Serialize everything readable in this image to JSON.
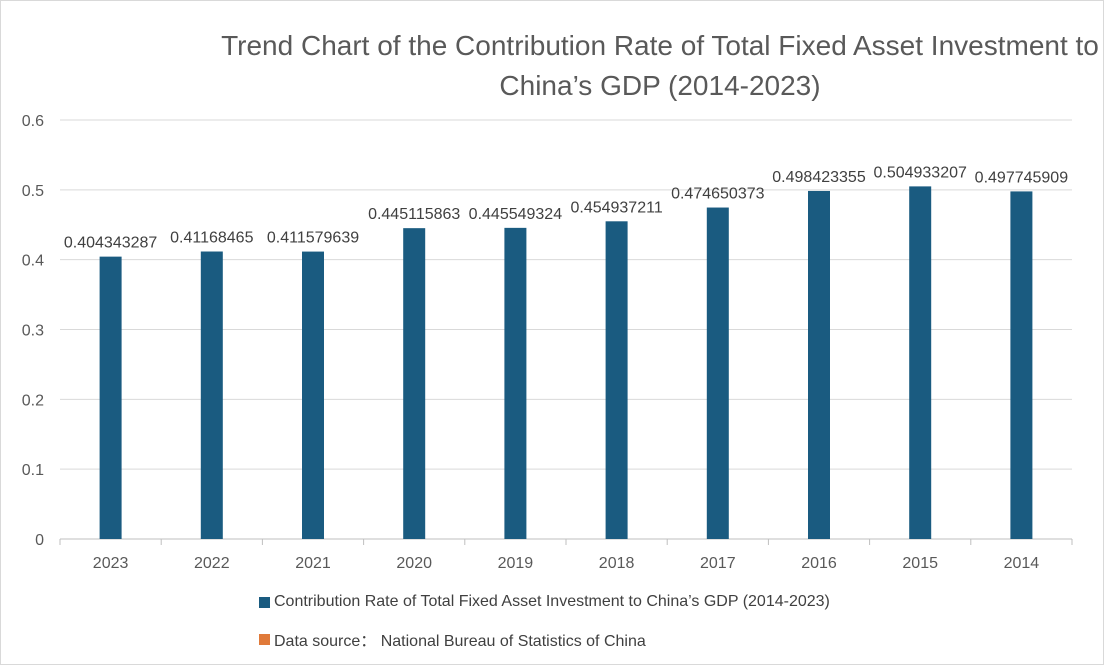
{
  "chart_data": {
    "type": "bar",
    "title": "Trend Chart of the Contribution Rate of Total Fixed Asset Investment to China’s GDP (2014-2023)",
    "categories": [
      "2023",
      "2022",
      "2021",
      "2020",
      "2019",
      "2018",
      "2017",
      "2016",
      "2015",
      "2014"
    ],
    "series": [
      {
        "name": "Contribution Rate of Total Fixed Asset Investment to China’s GDP (2014-2023)",
        "color": "#1a5b80",
        "values": [
          0.404343287,
          0.41168465,
          0.411579639,
          0.445115863,
          0.445549324,
          0.454937211,
          0.474650373,
          0.498423355,
          0.504933207,
          0.497745909
        ],
        "data_labels": [
          "0.404343287",
          "0.41168465",
          "0.411579639",
          "0.445115863",
          "0.445549324",
          "0.454937211",
          "0.474650373",
          "0.498423355",
          "0.504933207",
          "0.497745909"
        ]
      }
    ],
    "ylim": [
      0,
      0.6
    ],
    "yticks": [
      0,
      0.1,
      0.2,
      0.3,
      0.4,
      0.5,
      0.6
    ],
    "ytick_labels": [
      "0",
      "0.1",
      "0.2",
      "0.3",
      "0.4",
      "0.5",
      "0.6"
    ],
    "grid": true,
    "legend": [
      {
        "label": "Contribution Rate of Total Fixed Asset Investment to China’s GDP (2014-2023)",
        "color": "#1a5b80"
      },
      {
        "label": "Data source：  National Bureau of Statistics of China",
        "color": "#e07a3a"
      }
    ],
    "legend_position": "bottom"
  }
}
